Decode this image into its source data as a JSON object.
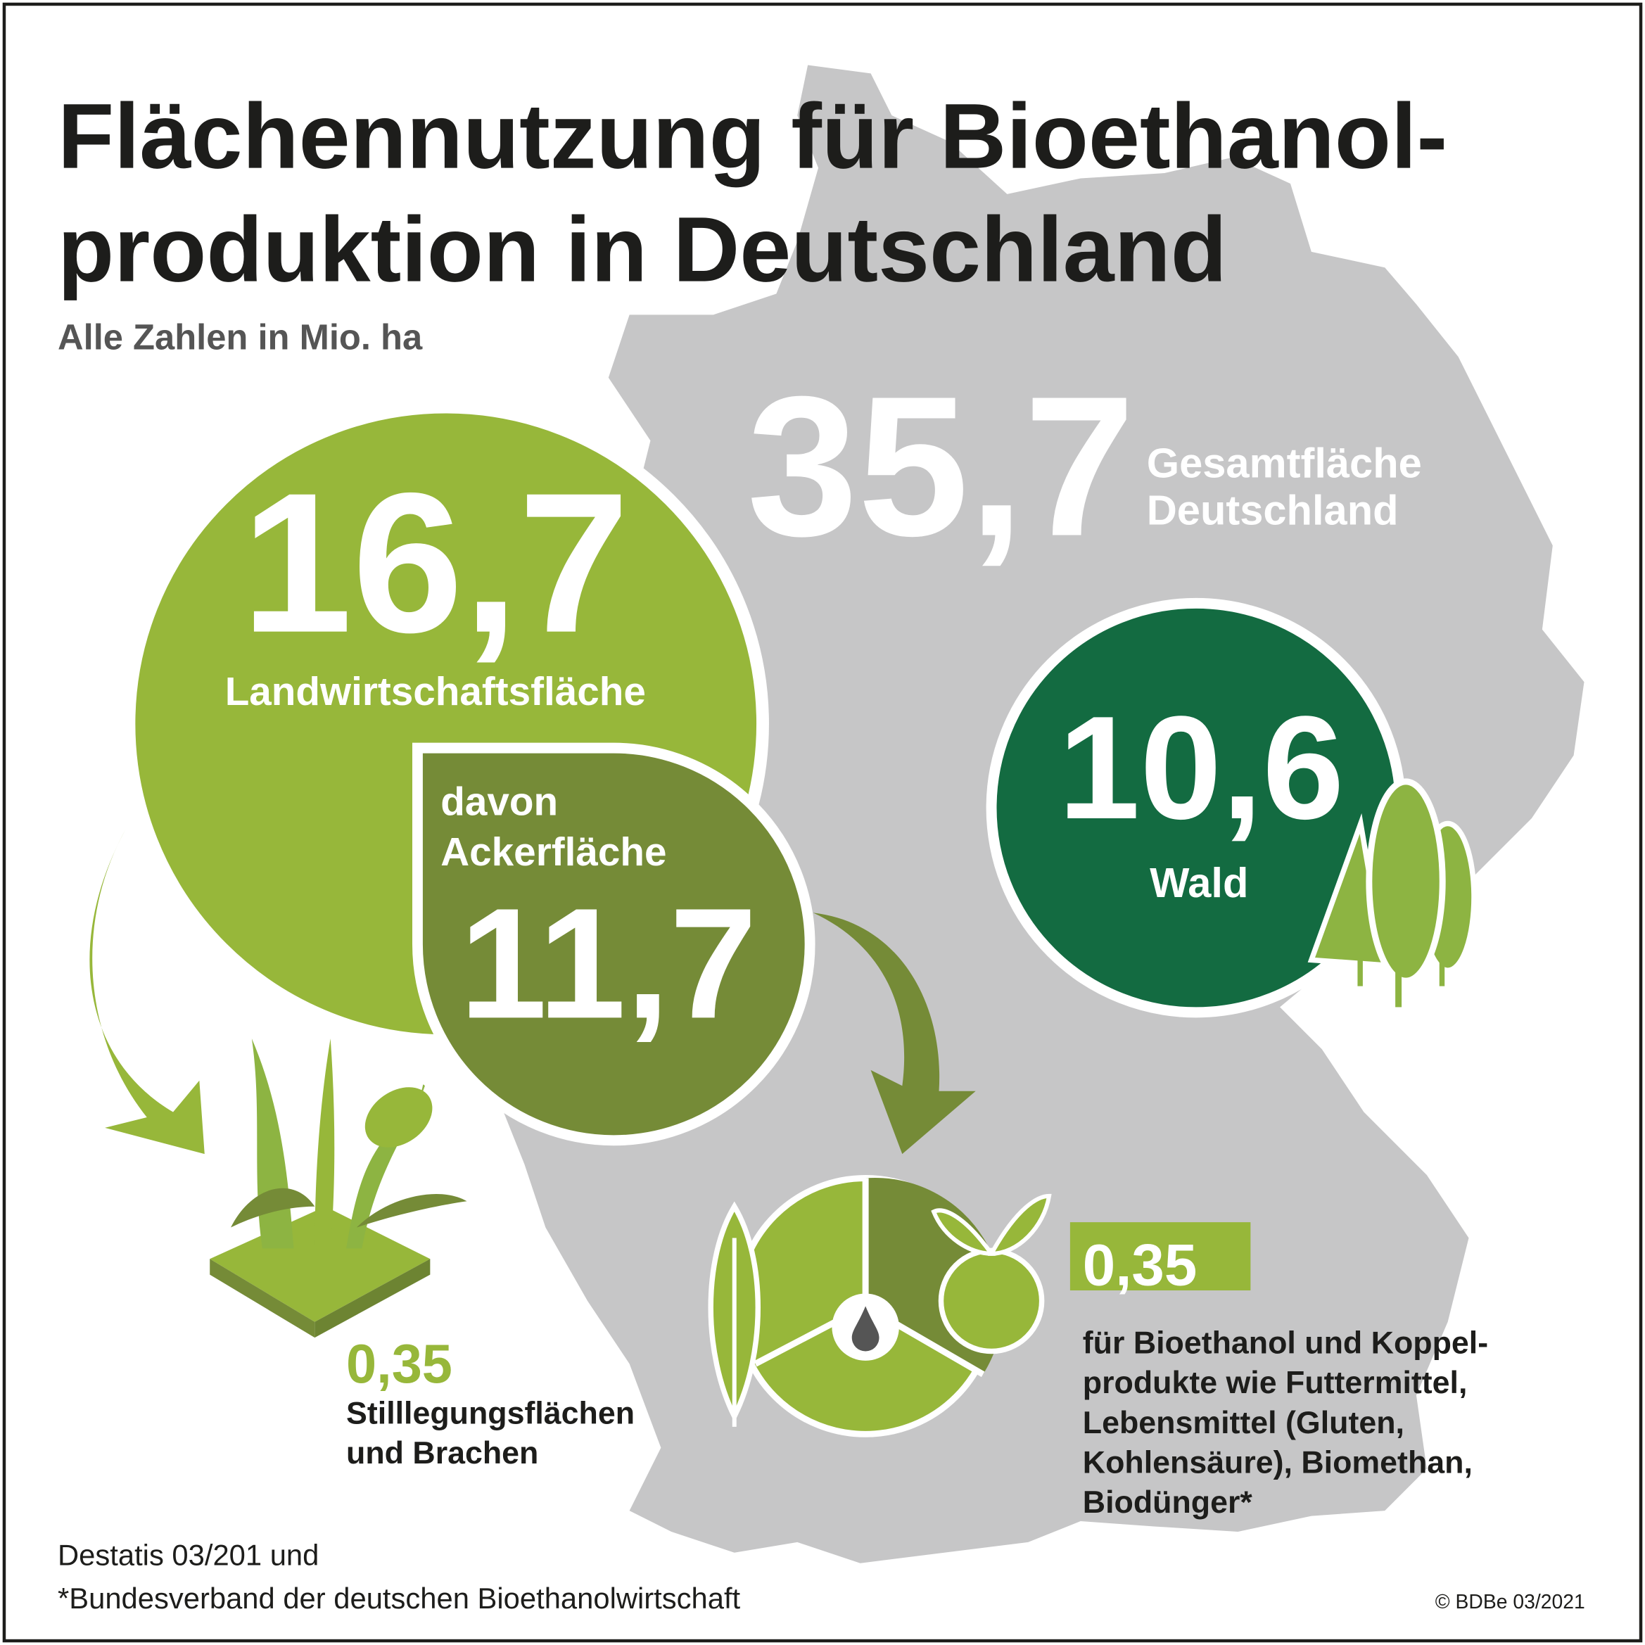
{
  "header": {
    "title_lines": [
      "Flächennutzung für Bioethanol-",
      "produktion in Deutschland"
    ],
    "subtitle": "Alle Zahlen in Mio. ha"
  },
  "total": {
    "value": "35,7",
    "label_lines": [
      "Gesamtfläche",
      "Deutschland"
    ]
  },
  "agriculture": {
    "value": "16,7",
    "label": "Landwirtschaftsfläche"
  },
  "arable": {
    "label_lines": [
      "davon",
      "Ackerfläche"
    ],
    "value": "11,7"
  },
  "forest": {
    "value": "10,6",
    "label": "Wald"
  },
  "fallow": {
    "value": "0,35",
    "label_lines": [
      "Stilllegungsflächen",
      "und Brachen"
    ]
  },
  "bioethanol": {
    "value": "0,35",
    "label_lines": [
      "für Bioethanol und Koppel-",
      "produkte wie Futtermittel,",
      "Lebensmittel (Gluten,",
      "Kohlensäure), Biomethan,",
      "Biodünger*"
    ]
  },
  "footer": {
    "source_lines": [
      "Destatis 03/201 und",
      "*Bundesverband der deutschen Bioethanolwirtschaft"
    ],
    "copyright": "© BDBe 03/2021"
  }
}
